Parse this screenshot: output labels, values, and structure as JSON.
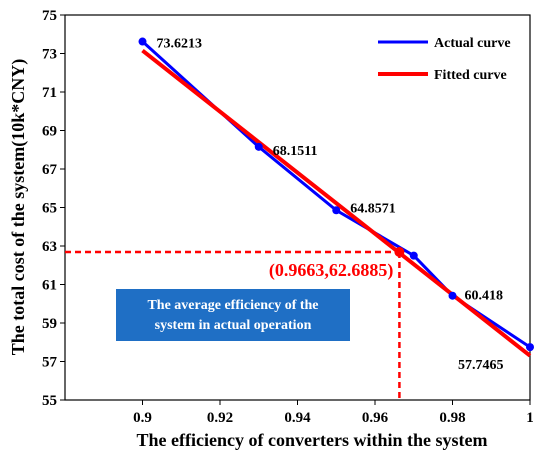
{
  "chart_data": {
    "type": "line",
    "xlabel": "The efficiency of converters within the system",
    "ylabel": "The total cost of the system(10k*CNY)",
    "xlim": [
      0.88,
      1.0
    ],
    "ylim": [
      55,
      75
    ],
    "x_ticks": [
      "0.9",
      "0.92",
      "0.94",
      "0.96",
      "0.98",
      "1"
    ],
    "y_ticks": [
      "55",
      "57",
      "59",
      "61",
      "63",
      "65",
      "67",
      "69",
      "71",
      "73",
      "75"
    ],
    "grid": false,
    "legend_position": "top-right",
    "series": [
      {
        "name": "Actual curve",
        "color": "#0000ff",
        "x": [
          0.9,
          0.93,
          0.95,
          0.97,
          0.98,
          1.0
        ],
        "y": [
          73.6213,
          68.1511,
          64.8571,
          62.5,
          60.418,
          57.7465
        ],
        "point_labels": [
          "73.6213",
          "68.1511",
          "64.8571",
          "",
          "60.418",
          "57.7465"
        ]
      },
      {
        "name": "Fitted curve",
        "color": "#ff0000",
        "x": [
          0.9,
          1.0
        ],
        "y": [
          73.15,
          57.3
        ]
      }
    ],
    "annotation_point": {
      "x": 0.9663,
      "y": 62.6885,
      "label": "(0.9663,62.6885)",
      "color": "#ff0000"
    },
    "note": {
      "lines": [
        "The average efficiency of the",
        "system in actual operation"
      ],
      "background": "#1f6fc5"
    }
  }
}
